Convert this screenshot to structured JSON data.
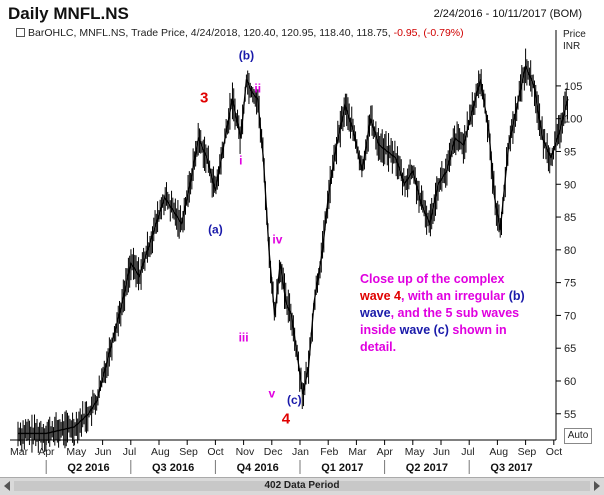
{
  "header": {
    "title": "Daily MNFL.NS",
    "date_range": "2/24/2016 - 10/11/2017 (BOM)",
    "legend_prefix": "BarOHLC, MNFL.NS, Trade Price, 4/24/2018, 120.40, 120.95, 118.40, 118.75,",
    "legend_change": "-0.95, (-0.79%)"
  },
  "axis": {
    "price_title": "Price",
    "currency": "INR",
    "auto_button": "Auto",
    "data_period": "402 Data Period"
  },
  "annotation": {
    "line1": "Close up of the complex",
    "line2_red": "wave 4",
    "line2_rest": ", with an irregular ",
    "line2_blue": "(b)",
    "line3_blue": "wave",
    "line3_rest": ", and the 5 sub waves",
    "line4": "inside ",
    "line4_blue": "wave (c)",
    "line4_rest": " shown in",
    "line5": "detail."
  },
  "colors": {
    "bars": "#000000",
    "wave_major": "#e00000",
    "wave_letters": "#1a1aaa",
    "sub_waves": "#e000e0",
    "negative_change": "#d00000"
  },
  "chart_data": {
    "type": "line",
    "title": "Daily MNFL.NS",
    "ylabel": "Price INR",
    "ylim": [
      51,
      112
    ],
    "yticks": [
      55,
      60,
      65,
      70,
      75,
      80,
      85,
      90,
      95,
      100,
      105
    ],
    "month_ticks": [
      "Mar",
      "Apr",
      "May",
      "Jun",
      "Jul",
      "Aug",
      "Sep",
      "Oct",
      "Nov",
      "Dec",
      "Jan",
      "Feb",
      "Mar",
      "Apr",
      "May",
      "Jun",
      "Jul",
      "Aug",
      "Sep",
      "Oct"
    ],
    "quarter_labels": [
      "Q2 2016",
      "Q3 2016",
      "Q4 2016",
      "Q1 2017",
      "Q2 2017",
      "Q3 2017"
    ],
    "x_months": [
      0,
      1,
      2,
      2.5,
      2.8,
      3.1,
      3.4,
      3.7,
      4.0,
      4.3,
      4.6,
      4.9,
      5.2,
      5.5,
      5.8,
      6.1,
      6.4,
      6.7,
      7.0,
      7.3,
      7.6,
      7.9,
      8.1,
      8.3,
      8.5,
      8.7,
      8.9,
      9.1,
      9.3,
      9.5,
      9.7,
      9.9,
      10.1,
      10.3,
      10.5,
      10.8,
      11.0,
      11.3,
      11.6,
      11.9,
      12.2,
      12.5,
      12.8,
      13.1,
      13.4,
      13.7,
      14.0,
      14.3,
      14.6,
      14.9,
      15.2,
      15.5,
      15.8,
      16.1,
      16.4,
      16.7,
      16.9,
      17.1,
      17.4,
      17.7,
      18.0,
      18.3,
      18.6,
      18.9,
      19.2,
      19.5
    ],
    "x_meaning": "months since 1 Mar 2016",
    "series": [
      {
        "name": "MNFL.NS",
        "values": [
          52,
          52,
          53,
          55,
          57,
          62,
          67,
          72,
          78,
          76,
          80,
          84,
          88,
          86,
          84,
          90,
          97,
          94,
          89,
          96,
          103,
          97,
          106,
          104,
          103,
          94,
          80,
          70,
          78,
          72,
          70,
          64,
          58,
          62,
          72,
          80,
          88,
          96,
          102,
          98,
          92,
          100,
          96,
          95,
          94,
          90,
          92,
          87,
          84,
          90,
          92,
          97,
          96,
          101,
          106,
          98,
          88,
          83,
          96,
          102,
          108,
          105,
          97,
          94,
          98,
          103
        ]
      }
    ],
    "wave_labels": [
      {
        "text": "3",
        "group": "major"
      },
      {
        "text": "(b)",
        "group": "letter"
      },
      {
        "text": "ii",
        "group": "sub"
      },
      {
        "text": "i",
        "group": "sub"
      },
      {
        "text": "(a)",
        "group": "letter"
      },
      {
        "text": "iv",
        "group": "sub"
      },
      {
        "text": "iii",
        "group": "sub"
      },
      {
        "text": "v",
        "group": "sub"
      },
      {
        "text": "(c)",
        "group": "letter"
      },
      {
        "text": "4",
        "group": "major"
      }
    ],
    "grid": false,
    "legend": "top-left"
  }
}
